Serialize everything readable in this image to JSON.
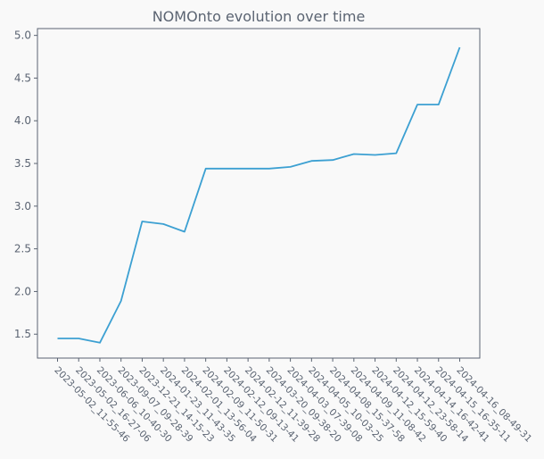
{
  "chart_data": {
    "type": "line",
    "title": "NOMOnto evolution over time",
    "xlabel": "",
    "ylabel": "",
    "ylim": [
      1.22,
      5.08
    ],
    "yticks": [
      "1.5",
      "2.0",
      "2.5",
      "3.0",
      "3.5",
      "4.0",
      "4.5",
      "5.0"
    ],
    "grid": false,
    "categories": [
      "2023-05-02_11-55-46",
      "2023-05-02_16-27-06",
      "2023-06-06_10-40-30",
      "2023-09-07_09-28-39",
      "2023-12-21_14-15-23",
      "2024-01-23_11-43-35",
      "2024-02-01_13-56-04",
      "2024-02-09_11-50-31",
      "2024-02-12_09-13-41",
      "2024-02-12_11-39-28",
      "2024-03-20_09-38-20",
      "2024-04-03_07-39-08",
      "2024-04-05_10-03-25",
      "2024-04-08_15-37-58",
      "2024-04-09_11-08-42",
      "2024-04-12_15-59-40",
      "2024-04-12_23-58-14",
      "2024-04-14_16-42-41",
      "2024-04-15_16-35-11",
      "2024-04-16_08-49-31"
    ],
    "series": [
      {
        "values": [
          1.45,
          1.45,
          1.4,
          1.89,
          2.82,
          2.79,
          2.7,
          3.44,
          3.44,
          3.44,
          3.44,
          3.46,
          3.53,
          3.54,
          3.61,
          3.6,
          3.62,
          4.19,
          4.19,
          4.86
        ],
        "color": "#3ca0d2"
      }
    ]
  }
}
